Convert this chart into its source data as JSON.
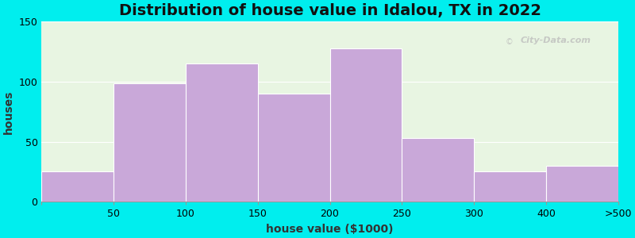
{
  "title": "Distribution of house value in Idalou, TX in 2022",
  "xlabel": "house value ($1000)",
  "ylabel": "houses",
  "bar_values": [
    25,
    99,
    115,
    90,
    128,
    53,
    25,
    30
  ],
  "bar_color": "#C9A8D9",
  "bar_edge_color": "#ffffff",
  "ylim": [
    0,
    150
  ],
  "yticks": [
    0,
    50,
    100,
    150
  ],
  "xtick_labels": [
    "50",
    "100",
    "150",
    "200",
    "250",
    "300",
    "400",
    ">500"
  ],
  "background_outer": "#00EEEE",
  "background_inner": "#E8F5E2",
  "title_fontsize": 14,
  "axis_label_fontsize": 10,
  "tick_fontsize": 9,
  "watermark_text": "City-Data.com"
}
